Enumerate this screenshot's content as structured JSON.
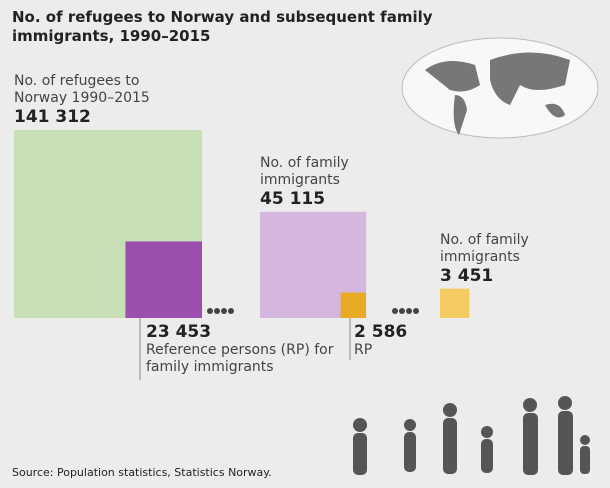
{
  "title": "No. of refugees to Norway and subsequent family immigrants, 1990–2015",
  "source": "Source: Population statistics, Statistics Norway.",
  "boxes": [
    {
      "label": "No. of refugees to Norway 1990–2015",
      "value": 141312,
      "value_label": "141 312",
      "color": "#c6dfb4"
    },
    {
      "label": "Reference persons (RP) for family immigrants",
      "value": 23453,
      "value_label": "23 453",
      "color": "#9a4eae"
    },
    {
      "label": "No. of family immigrants",
      "value": 45115,
      "value_label": "45 115",
      "color": "#d5b6de"
    },
    {
      "label": "RP",
      "value": 2586,
      "value_label": "2 586",
      "color": "#e9aa25"
    },
    {
      "label": "No. of family immigrants",
      "value": 3451,
      "value_label": "3 451",
      "color": "#f3cb60"
    }
  ]
}
